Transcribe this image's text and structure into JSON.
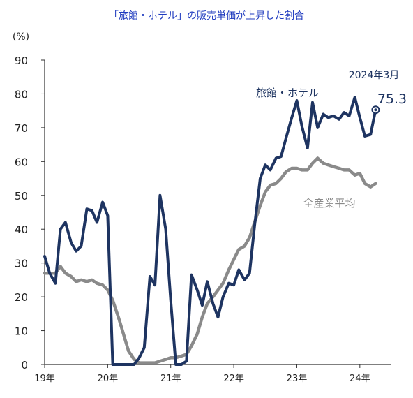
{
  "chart_data": {
    "type": "line",
    "title": "「旅館・ホテル」の販売単価が上昇した割合",
    "unit_label": "(%)",
    "ylim": [
      0,
      90
    ],
    "yticks": [
      0,
      10,
      20,
      30,
      40,
      50,
      60,
      70,
      80,
      90
    ],
    "grid": false,
    "xlim": [
      2019.0,
      2024.5
    ],
    "xticks": [
      {
        "x": 2019,
        "label": "19年"
      },
      {
        "x": 2020,
        "label": "20年"
      },
      {
        "x": 2021,
        "label": "21年"
      },
      {
        "x": 2022,
        "label": "22年"
      },
      {
        "x": 2023,
        "label": "23年"
      },
      {
        "x": 2024,
        "label": "24年"
      }
    ],
    "series": [
      {
        "name": "旅館・ホテル",
        "color": "#1e3461",
        "points": [
          [
            2019.0,
            32
          ],
          [
            2019.08,
            27
          ],
          [
            2019.17,
            24
          ],
          [
            2019.25,
            40
          ],
          [
            2019.33,
            42
          ],
          [
            2019.42,
            36
          ],
          [
            2019.5,
            33.5
          ],
          [
            2019.58,
            35
          ],
          [
            2019.67,
            46
          ],
          [
            2019.75,
            45.5
          ],
          [
            2019.83,
            42
          ],
          [
            2019.92,
            48
          ],
          [
            2020.0,
            44
          ],
          [
            2020.08,
            0
          ],
          [
            2020.17,
            0
          ],
          [
            2020.25,
            0
          ],
          [
            2020.33,
            0
          ],
          [
            2020.42,
            0
          ],
          [
            2020.5,
            2
          ],
          [
            2020.58,
            5
          ],
          [
            2020.67,
            26
          ],
          [
            2020.75,
            23.5
          ],
          [
            2020.83,
            50
          ],
          [
            2020.92,
            40
          ],
          [
            2021.0,
            19
          ],
          [
            2021.08,
            0
          ],
          [
            2021.17,
            0
          ],
          [
            2021.25,
            1
          ],
          [
            2021.33,
            26.5
          ],
          [
            2021.42,
            22
          ],
          [
            2021.5,
            17.5
          ],
          [
            2021.58,
            24.5
          ],
          [
            2021.67,
            18
          ],
          [
            2021.75,
            14
          ],
          [
            2021.83,
            20
          ],
          [
            2021.92,
            24
          ],
          [
            2022.0,
            23.5
          ],
          [
            2022.08,
            28
          ],
          [
            2022.17,
            25
          ],
          [
            2022.25,
            27
          ],
          [
            2022.33,
            41
          ],
          [
            2022.42,
            55
          ],
          [
            2022.5,
            59
          ],
          [
            2022.58,
            57.5
          ],
          [
            2022.67,
            61
          ],
          [
            2022.75,
            61.5
          ],
          [
            2022.83,
            67
          ],
          [
            2022.92,
            73
          ],
          [
            2023.0,
            78
          ],
          [
            2023.08,
            70.5
          ],
          [
            2023.17,
            64
          ],
          [
            2023.25,
            77.5
          ],
          [
            2023.33,
            70
          ],
          [
            2023.42,
            74
          ],
          [
            2023.5,
            73
          ],
          [
            2023.58,
            73.5
          ],
          [
            2023.67,
            72.5
          ],
          [
            2023.75,
            74.5
          ],
          [
            2023.83,
            73.5
          ],
          [
            2023.92,
            79
          ],
          [
            2024.0,
            73
          ],
          [
            2024.08,
            67.5
          ],
          [
            2024.17,
            68
          ],
          [
            2024.25,
            75.3
          ]
        ]
      },
      {
        "name": "全産業平均",
        "color": "#8a8a8a",
        "points": [
          [
            2019.0,
            27
          ],
          [
            2019.08,
            27
          ],
          [
            2019.17,
            27
          ],
          [
            2019.25,
            29
          ],
          [
            2019.33,
            27
          ],
          [
            2019.42,
            26
          ],
          [
            2019.5,
            24.5
          ],
          [
            2019.58,
            25
          ],
          [
            2019.67,
            24.5
          ],
          [
            2019.75,
            25
          ],
          [
            2019.83,
            24
          ],
          [
            2019.92,
            23.5
          ],
          [
            2020.0,
            22
          ],
          [
            2020.08,
            19
          ],
          [
            2020.17,
            14
          ],
          [
            2020.25,
            9
          ],
          [
            2020.33,
            4
          ],
          [
            2020.42,
            1.5
          ],
          [
            2020.5,
            0.5
          ],
          [
            2020.58,
            0.5
          ],
          [
            2020.67,
            0.5
          ],
          [
            2020.75,
            0.5
          ],
          [
            2020.83,
            1
          ],
          [
            2020.92,
            1.5
          ],
          [
            2021.0,
            2
          ],
          [
            2021.08,
            2
          ],
          [
            2021.17,
            2.5
          ],
          [
            2021.25,
            3
          ],
          [
            2021.33,
            5.5
          ],
          [
            2021.42,
            9
          ],
          [
            2021.5,
            14
          ],
          [
            2021.58,
            18
          ],
          [
            2021.67,
            20
          ],
          [
            2021.75,
            22
          ],
          [
            2021.83,
            24
          ],
          [
            2021.92,
            28
          ],
          [
            2022.0,
            31
          ],
          [
            2022.08,
            34
          ],
          [
            2022.17,
            35
          ],
          [
            2022.25,
            37.5
          ],
          [
            2022.33,
            42
          ],
          [
            2022.42,
            47
          ],
          [
            2022.5,
            51
          ],
          [
            2022.58,
            53
          ],
          [
            2022.67,
            53.5
          ],
          [
            2022.75,
            55
          ],
          [
            2022.83,
            57
          ],
          [
            2022.92,
            58
          ],
          [
            2023.0,
            58
          ],
          [
            2023.08,
            57.5
          ],
          [
            2023.17,
            57.5
          ],
          [
            2023.25,
            59.5
          ],
          [
            2023.33,
            61
          ],
          [
            2023.42,
            59.5
          ],
          [
            2023.5,
            59
          ],
          [
            2023.58,
            58.5
          ],
          [
            2023.67,
            58
          ],
          [
            2023.75,
            57.5
          ],
          [
            2023.83,
            57.5
          ],
          [
            2023.92,
            56
          ],
          [
            2024.0,
            56.5
          ],
          [
            2024.08,
            53.5
          ],
          [
            2024.17,
            52.5
          ],
          [
            2024.25,
            53.5
          ]
        ]
      }
    ],
    "annotation": {
      "date_label": "2024年3月",
      "value_label": "75.3",
      "x": 2024.25,
      "y": 75.3
    }
  }
}
